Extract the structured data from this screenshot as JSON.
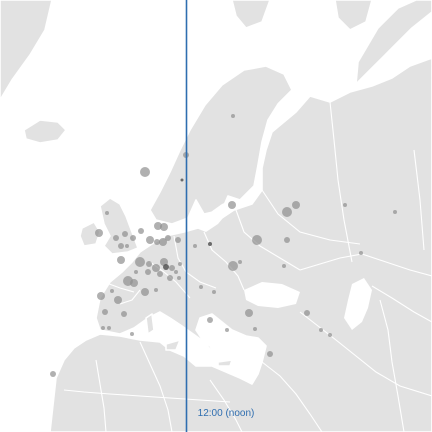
{
  "noon_line": {
    "label": "12:00 (noon)",
    "color": "#2f6eb0"
  },
  "colors": {
    "sea": "#ffffff",
    "land": "#e2e2e2",
    "border": "#ffffff",
    "dot": "#8f8f8f",
    "dot_dark": "#555555"
  }
}
